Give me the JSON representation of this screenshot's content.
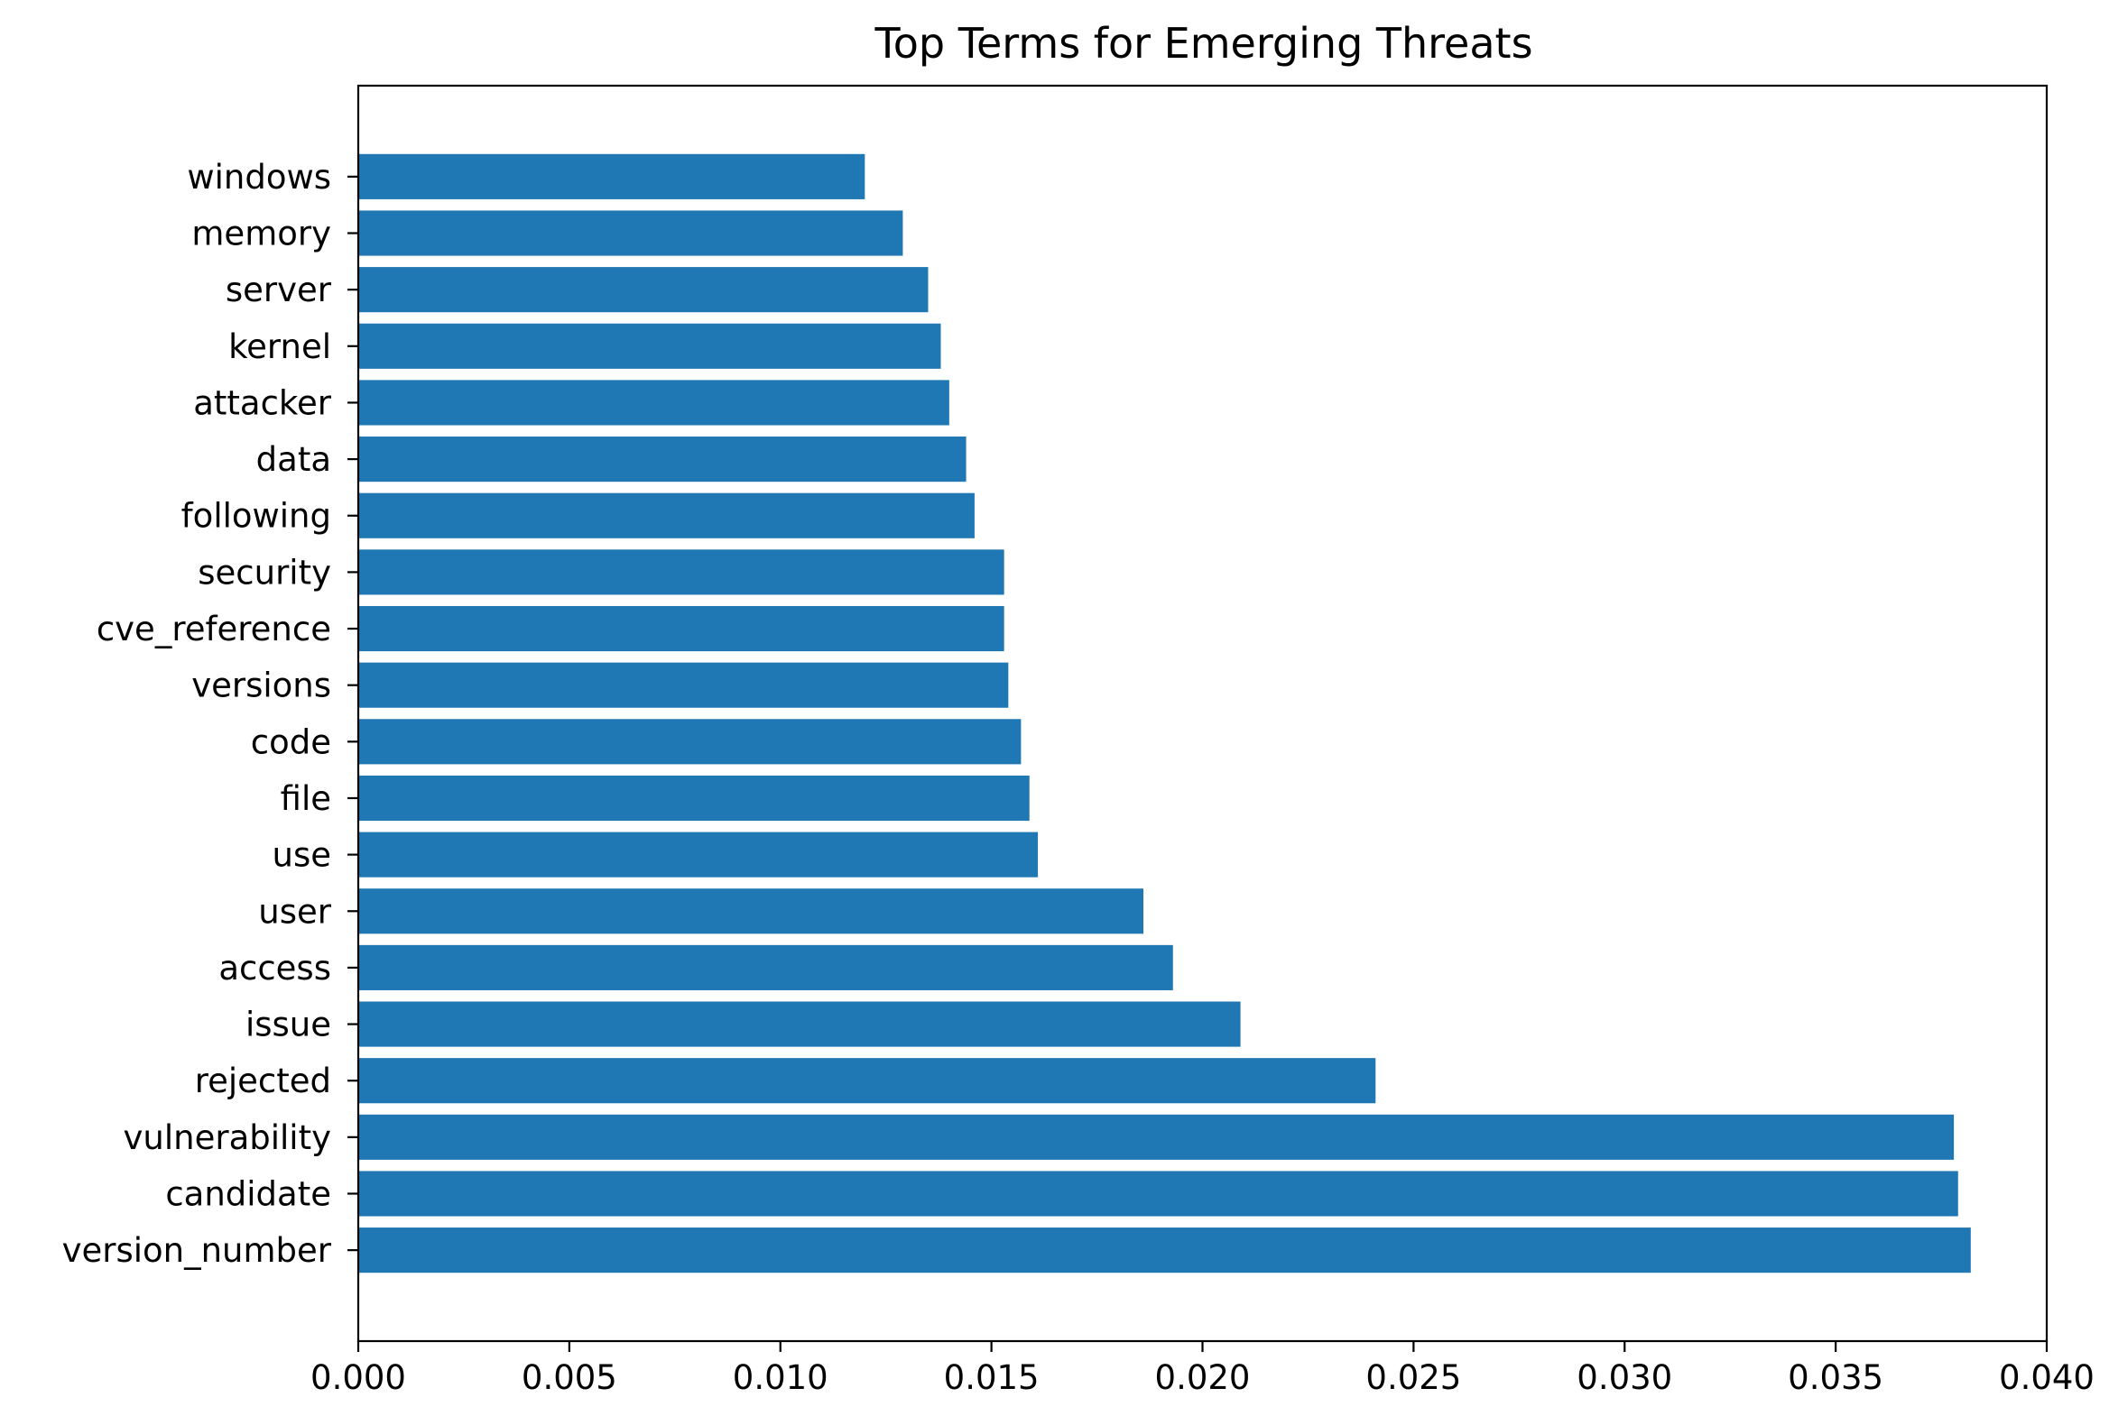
{
  "chart_data": {
    "type": "bar",
    "orientation": "horizontal",
    "title": "Top Terms for Emerging Threats",
    "xlabel": "",
    "ylabel": "",
    "xlim": [
      0,
      0.04
    ],
    "x_ticks": [
      "0.000",
      "0.005",
      "0.010",
      "0.015",
      "0.020",
      "0.025",
      "0.030",
      "0.035",
      "0.040"
    ],
    "categories": [
      "version_number",
      "candidate",
      "vulnerability",
      "rejected",
      "issue",
      "access",
      "user",
      "use",
      "file",
      "code",
      "versions",
      "cve_reference",
      "security",
      "following",
      "data",
      "attacker",
      "kernel",
      "server",
      "memory",
      "windows"
    ],
    "values": [
      0.0382,
      0.0379,
      0.0378,
      0.0241,
      0.0209,
      0.0193,
      0.0186,
      0.0161,
      0.0159,
      0.0157,
      0.0154,
      0.0153,
      0.0153,
      0.0146,
      0.0144,
      0.014,
      0.0138,
      0.0135,
      0.0129,
      0.012
    ],
    "bar_color": "#1f77b4",
    "grid": false,
    "legend": "none"
  }
}
